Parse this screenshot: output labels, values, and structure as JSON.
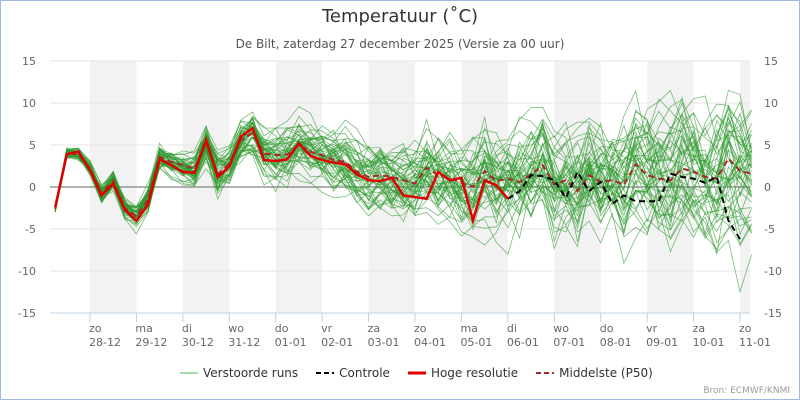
{
  "title": "Temperatuur (˚C)",
  "subtitle": "De Bilt, zaterdag 27 december 2025 (Versie za 00 uur)",
  "credit": "Bron: ECMWF/KNMI",
  "colors": {
    "members": "#2e9a2e",
    "control": "#000000",
    "hires": "#e00000",
    "p50": "#a52a2a",
    "band": "#f2f2f2",
    "grid": "#e6e6e6",
    "zero": "#666666"
  },
  "legend": [
    {
      "key": "members",
      "label": "Verstoorde runs"
    },
    {
      "key": "control",
      "label": "Controle"
    },
    {
      "key": "hires",
      "label": "Hoge resolutie"
    },
    {
      "key": "p50",
      "label": "Middelste (P50)"
    }
  ],
  "chart_data": {
    "type": "line",
    "title": "Temperatuur (˚C)",
    "ylabel": "",
    "xlabel": "",
    "ylim": [
      -15,
      15
    ],
    "yticks": [
      15,
      10,
      5,
      0,
      -5,
      -10,
      -15
    ],
    "grid": true,
    "legend_position": "bottom",
    "x_step_hours": 6,
    "x_start": "27-12 06h",
    "x_start_offset_days": -0.75,
    "days_total": 14,
    "x_ticks": [
      {
        "day": "zo",
        "date": "28-12"
      },
      {
        "day": "ma",
        "date": "29-12"
      },
      {
        "day": "di",
        "date": "30-12"
      },
      {
        "day": "wo",
        "date": "31-12"
      },
      {
        "day": "do",
        "date": "01-01"
      },
      {
        "day": "vr",
        "date": "02-01"
      },
      {
        "day": "za",
        "date": "03-01"
      },
      {
        "day": "zo",
        "date": "04-01"
      },
      {
        "day": "ma",
        "date": "05-01"
      },
      {
        "day": "di",
        "date": "06-01"
      },
      {
        "day": "wo",
        "date": "07-01"
      },
      {
        "day": "do",
        "date": "08-01"
      },
      {
        "day": "vr",
        "date": "09-01"
      },
      {
        "day": "za",
        "date": "10-01"
      },
      {
        "day": "zo",
        "date": "11-01"
      }
    ],
    "series": [
      {
        "name": "Hoge resolutie",
        "key": "hires",
        "start_index": 0,
        "values": [
          -2.4,
          3.9,
          4.2,
          2.0,
          -1.0,
          0.4,
          -2.7,
          -4.0,
          -2.1,
          3.3,
          2.6,
          1.8,
          1.7,
          5.6,
          1.2,
          2.4,
          6.0,
          7.0,
          3.2,
          3.1,
          3.3,
          5.2,
          3.7,
          3.2,
          2.9,
          2.7,
          1.5,
          0.8,
          0.7,
          1.1,
          -1.0,
          -1.2,
          -1.4,
          1.8,
          0.8,
          1.1,
          -4.0,
          0.8,
          0.2,
          -1.4
        ]
      },
      {
        "name": "Controle",
        "key": "control",
        "start_index": 39,
        "values": [
          -1.4,
          -0.5,
          1.4,
          1.3,
          0.8,
          -1.3,
          1.8,
          -0.5,
          0.6,
          -2.0,
          -1.0,
          -1.7,
          -1.7,
          -1.7,
          1.6,
          1.2,
          1.0,
          0.5,
          1.2,
          -4.0,
          -6.2
        ]
      },
      {
        "name": "Middelste (P50)",
        "key": "p50",
        "start_index": 0,
        "values": [
          -2.6,
          4.0,
          3.9,
          2.2,
          -0.8,
          0.8,
          -2.5,
          -3.5,
          -1.5,
          3.6,
          3.0,
          2.6,
          2.2,
          5.3,
          1.5,
          2.8,
          5.6,
          6.4,
          4.0,
          3.8,
          3.9,
          5.0,
          4.2,
          3.8,
          3.2,
          3.0,
          1.8,
          1.2,
          1.4,
          1.2,
          0.8,
          0.4,
          2.3,
          1.4,
          1.0,
          0.5,
          0.0,
          1.9,
          0.7,
          1.0,
          0.6,
          1.5,
          2.6,
          0.3,
          0.8,
          -0.5,
          1.4,
          0.6,
          0.8,
          0.3,
          2.7,
          1.4,
          1.0,
          0.8,
          2.2,
          1.8,
          1.2,
          1.0,
          3.4,
          1.9,
          1.6
        ]
      },
      {
        "name": "Verstoorde runs",
        "key": "members",
        "count": 50,
        "start_index": 0
      }
    ]
  }
}
